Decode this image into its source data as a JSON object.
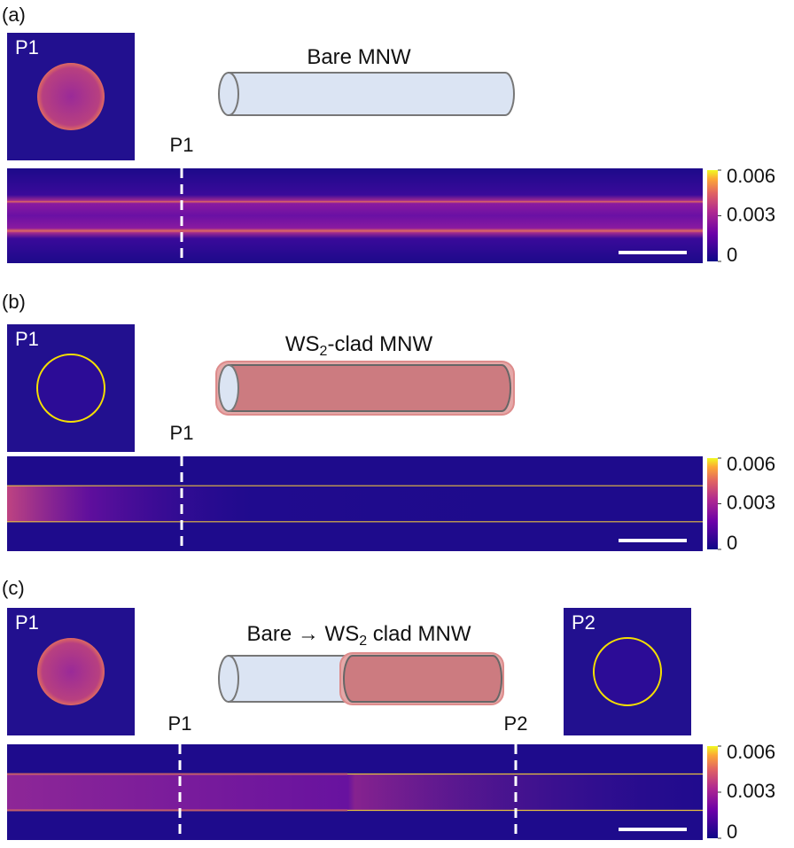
{
  "panels": [
    {
      "label": "(a)",
      "title": {
        "main": "Bare MNW"
      },
      "insets": [
        {
          "label": "P1"
        }
      ],
      "markers": [
        "P1"
      ],
      "colorbar": {
        "ticks": [
          0,
          0.003,
          0.006
        ]
      }
    },
    {
      "label": "(b)",
      "title": {
        "main": "WS",
        "sub": "2",
        "tail": "-clad MNW"
      },
      "insets": [
        {
          "label": "P1"
        }
      ],
      "markers": [
        "P1"
      ],
      "colorbar": {
        "ticks": [
          0,
          0.003,
          0.006
        ]
      }
    },
    {
      "label": "(c)",
      "title": {
        "main": "Bare → WS",
        "sub": "2",
        "tail": " clad MNW"
      },
      "insets": [
        {
          "label": "P1"
        },
        {
          "label": "P2"
        }
      ],
      "markers": [
        "P1",
        "P2"
      ],
      "colorbar": {
        "ticks": [
          0,
          0.003,
          0.006
        ]
      }
    }
  ]
}
